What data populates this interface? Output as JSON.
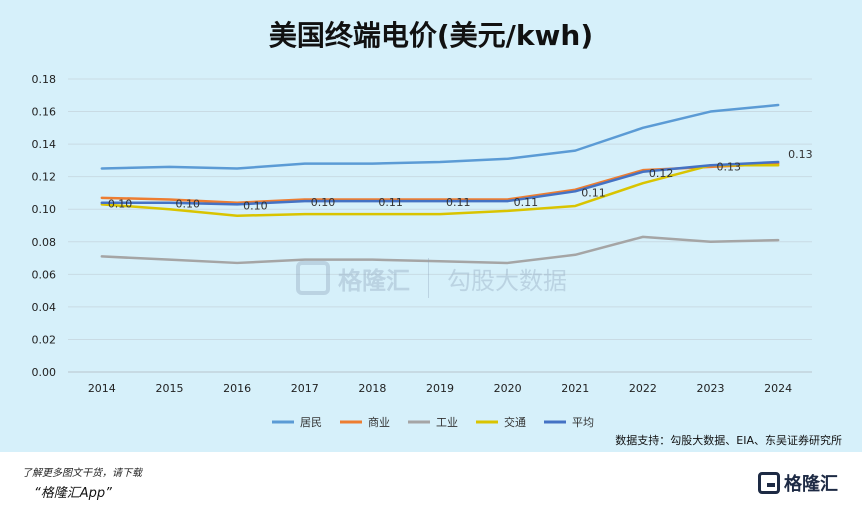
{
  "chart_data": {
    "type": "line",
    "title": "美国终端电价(美元/kwh)",
    "xlabel": "",
    "ylabel": "",
    "categories": [
      "2014",
      "2015",
      "2016",
      "2017",
      "2018",
      "2019",
      "2020",
      "2021",
      "2022",
      "2023",
      "2024"
    ],
    "ylim": [
      0,
      0.18
    ],
    "yticks": [
      "0.00",
      "0.02",
      "0.04",
      "0.06",
      "0.08",
      "0.10",
      "0.12",
      "0.14",
      "0.16",
      "0.18"
    ],
    "grid": true,
    "legend_position": "bottom",
    "series": [
      {
        "name": "居民",
        "color": "#5b9bd5",
        "values": [
          0.125,
          0.126,
          0.125,
          0.128,
          0.128,
          0.129,
          0.131,
          0.136,
          0.15,
          0.16,
          0.164
        ]
      },
      {
        "name": "商业",
        "color": "#ed7d31",
        "values": [
          0.107,
          0.106,
          0.104,
          0.106,
          0.106,
          0.106,
          0.106,
          0.112,
          0.124,
          0.126,
          0.128
        ]
      },
      {
        "name": "工业",
        "color": "#a5a5a5",
        "values": [
          0.071,
          0.069,
          0.067,
          0.069,
          0.069,
          0.068,
          0.067,
          0.072,
          0.083,
          0.08,
          0.081
        ]
      },
      {
        "name": "交通",
        "color": "#d9c400",
        "values": [
          0.103,
          0.1,
          0.096,
          0.097,
          0.097,
          0.097,
          0.099,
          0.102,
          0.116,
          0.127,
          0.127
        ]
      },
      {
        "name": "平均",
        "color": "#4472c4",
        "values": [
          0.104,
          0.104,
          0.103,
          0.105,
          0.105,
          0.105,
          0.105,
          0.111,
          0.123,
          0.127,
          0.129
        ]
      }
    ],
    "data_labels": {
      "series": "平均",
      "values": [
        "0.10",
        "0.10",
        "0.10",
        "0.10",
        "0.11",
        "0.11",
        "0.11",
        "0.11",
        "0.12",
        "0.13",
        "0.13"
      ]
    }
  },
  "source": "数据支持：勾股大数据、EIA、东吴证券研究所",
  "footer": {
    "line1": "了解更多图文干货，请下载",
    "line2": "“格隆汇App”",
    "logo_text": "格隆汇"
  },
  "watermark": {
    "brand1": "格隆汇",
    "brand2": "勾股大数据"
  }
}
